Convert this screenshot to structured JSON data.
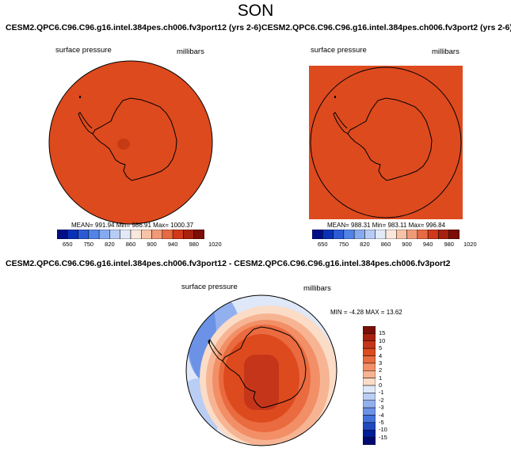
{
  "figure": {
    "season": "SON"
  },
  "panels": [
    {
      "title": "CESM2.QPC6.C96.C96.g16.intel.384pes.ch006.fv3port12 (yrs 2-6)",
      "variable": "surface pressure",
      "units": "millibars",
      "stats": "MEAN= 991.94  Min= 986.91  Max= 1000.37",
      "colorbar_ticks": [
        "650",
        "750",
        "820",
        "860",
        "900",
        "940",
        "980",
        "1020"
      ]
    },
    {
      "title": "CESM2.QPC6.C96.C96.g16.intel.384pes.ch006.fv3port2 (yrs 2-6)",
      "variable": "surface pressure",
      "units": "millibars",
      "stats": "MEAN= 988.31  Min= 983.11  Max= 996.84",
      "colorbar_ticks": [
        "650",
        "750",
        "820",
        "860",
        "900",
        "940",
        "980",
        "1020"
      ]
    },
    {
      "title": "CESM2.QPC6.C96.C96.g16.intel.384pes.ch006.fv3port12 - CESM2.QPC6.C96.C96.g16.intel.384pes.ch006.fv3port2",
      "variable": "surface pressure",
      "units": "millibars",
      "stats": "MIN = -4.28 MAX =  13.62",
      "colorbar_ticks": [
        "15",
        "10",
        "5",
        "4",
        "3",
        "2",
        "1",
        "0",
        "-1",
        "-2",
        "-3",
        "-4",
        "-5",
        "-10",
        "-15"
      ]
    }
  ],
  "colors": {
    "field_orange": "#dd4a1e",
    "field_dark": "#c43b14",
    "abs_scale": [
      "#000f85",
      "#0931b6",
      "#2b5ad5",
      "#5283e6",
      "#86aaf0",
      "#b7ccf5",
      "#e2eaf9",
      "#fbe7dc",
      "#f7c3a7",
      "#f19a78",
      "#e66a44",
      "#d1391a",
      "#a8200e",
      "#7a0e08"
    ],
    "diff_scale": [
      "#7a0e08",
      "#a8200e",
      "#c4351a",
      "#dd4a1e",
      "#ea6b3f",
      "#f28f67",
      "#f7b493",
      "#fbdcc7",
      "#dfe8f8",
      "#bacdf4",
      "#92b0ee",
      "#6b92e6",
      "#4472dc",
      "#2049bf",
      "#001e98",
      "#000a6e"
    ]
  },
  "chart_data": [
    {
      "type": "heatmap",
      "title": "CESM2.QPC6.C96.C96.g16.intel.384pes.ch006.fv3port12 (yrs 2-6)",
      "variable": "surface pressure",
      "units": "millibars",
      "projection": "south polar stereographic",
      "mean": 991.94,
      "min": 986.91,
      "max": 1000.37,
      "contour_levels": [
        650,
        750,
        820,
        860,
        900,
        940,
        980,
        1020
      ]
    },
    {
      "type": "heatmap",
      "title": "CESM2.QPC6.C96.C96.g16.intel.384pes.ch006.fv3port2 (yrs 2-6)",
      "variable": "surface pressure",
      "units": "millibars",
      "projection": "south polar stereographic",
      "mean": 988.31,
      "min": 983.11,
      "max": 996.84,
      "contour_levels": [
        650,
        750,
        820,
        860,
        900,
        940,
        980,
        1020
      ]
    },
    {
      "type": "heatmap",
      "title": "CESM2.QPC6.C96.C96.g16.intel.384pes.ch006.fv3port12 - CESM2.QPC6.C96.C96.g16.intel.384pes.ch006.fv3port2",
      "variable": "surface pressure",
      "units": "millibars",
      "projection": "south polar stereographic",
      "min": -4.28,
      "max": 13.62,
      "contour_levels": [
        -15,
        -10,
        -5,
        -4,
        -3,
        -2,
        -1,
        0,
        1,
        2,
        3,
        4,
        5,
        10,
        15
      ]
    }
  ]
}
